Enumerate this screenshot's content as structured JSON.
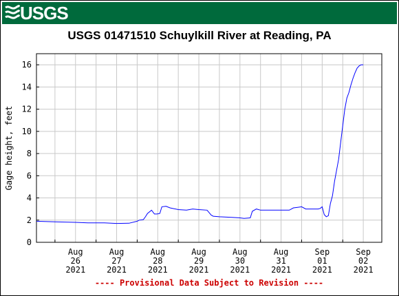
{
  "header": {
    "logo_text": "USGS",
    "colors": {
      "banner": "#006a3c",
      "logo": "#ffffff"
    }
  },
  "chart_data": {
    "type": "line",
    "title": "USGS 01471510 Schuylkill River at Reading, PA",
    "ylabel": "Gage height, feet",
    "xlabel": "",
    "ylim": [
      0,
      17
    ],
    "yticks": [
      0,
      2,
      4,
      6,
      8,
      10,
      12,
      14,
      16
    ],
    "xlim": [
      -0.45,
      7.95
    ],
    "xticks": [
      {
        "pos": 0.5,
        "lines": [
          "Aug",
          "26",
          "2021"
        ]
      },
      {
        "pos": 1.5,
        "lines": [
          "Aug",
          "27",
          "2021"
        ]
      },
      {
        "pos": 2.5,
        "lines": [
          "Aug",
          "28",
          "2021"
        ]
      },
      {
        "pos": 3.5,
        "lines": [
          "Aug",
          "29",
          "2021"
        ]
      },
      {
        "pos": 4.5,
        "lines": [
          "Aug",
          "30",
          "2021"
        ]
      },
      {
        "pos": 5.5,
        "lines": [
          "Aug",
          "31",
          "2021"
        ]
      },
      {
        "pos": 6.5,
        "lines": [
          "Sep",
          "01",
          "2021"
        ]
      },
      {
        "pos": 7.5,
        "lines": [
          "Sep",
          "02",
          "2021"
        ]
      }
    ],
    "grid": true,
    "line_color": "#0000ff",
    "series": [
      {
        "x": [
          -0.45,
          0,
          0.5,
          0.8,
          1.2,
          1.5,
          1.8,
          2.0,
          2.05,
          2.15,
          2.2,
          2.25,
          2.35,
          2.42,
          2.48,
          2.55,
          2.6,
          2.7,
          2.8,
          3.0,
          3.2,
          3.35,
          3.5,
          3.7,
          3.8,
          3.85,
          4.0,
          4.3,
          4.5,
          4.6,
          4.75,
          4.8,
          4.9,
          5.0,
          5.3,
          5.5,
          5.7,
          5.8,
          5.9,
          6.0,
          6.1,
          6.3,
          6.4,
          6.45,
          6.5,
          6.55,
          6.6,
          6.65,
          6.7,
          6.75,
          6.8,
          6.85,
          6.9,
          6.95,
          7.0,
          7.05,
          7.1,
          7.15,
          7.2,
          7.25,
          7.3,
          7.35,
          7.4,
          7.45,
          7.5
        ],
        "y": [
          1.9,
          1.85,
          1.8,
          1.75,
          1.75,
          1.7,
          1.72,
          1.9,
          2.0,
          2.05,
          2.3,
          2.6,
          2.9,
          2.55,
          2.55,
          2.6,
          3.2,
          3.25,
          3.1,
          2.95,
          2.9,
          3.0,
          2.95,
          2.9,
          2.45,
          2.35,
          2.3,
          2.25,
          2.2,
          2.15,
          2.2,
          2.8,
          3.0,
          2.9,
          2.9,
          2.9,
          2.9,
          3.1,
          3.15,
          3.2,
          3.0,
          3.0,
          3.0,
          3.05,
          3.2,
          2.5,
          2.3,
          2.4,
          3.5,
          4.2,
          5.5,
          6.5,
          7.5,
          9.0,
          10.5,
          12.0,
          13.0,
          13.5,
          14.2,
          14.8,
          15.3,
          15.7,
          15.9,
          16.0,
          16.0
        ]
      }
    ],
    "footnote": "---- Provisional Data Subject to Revision ----",
    "footnote_color": "#cc0000"
  }
}
